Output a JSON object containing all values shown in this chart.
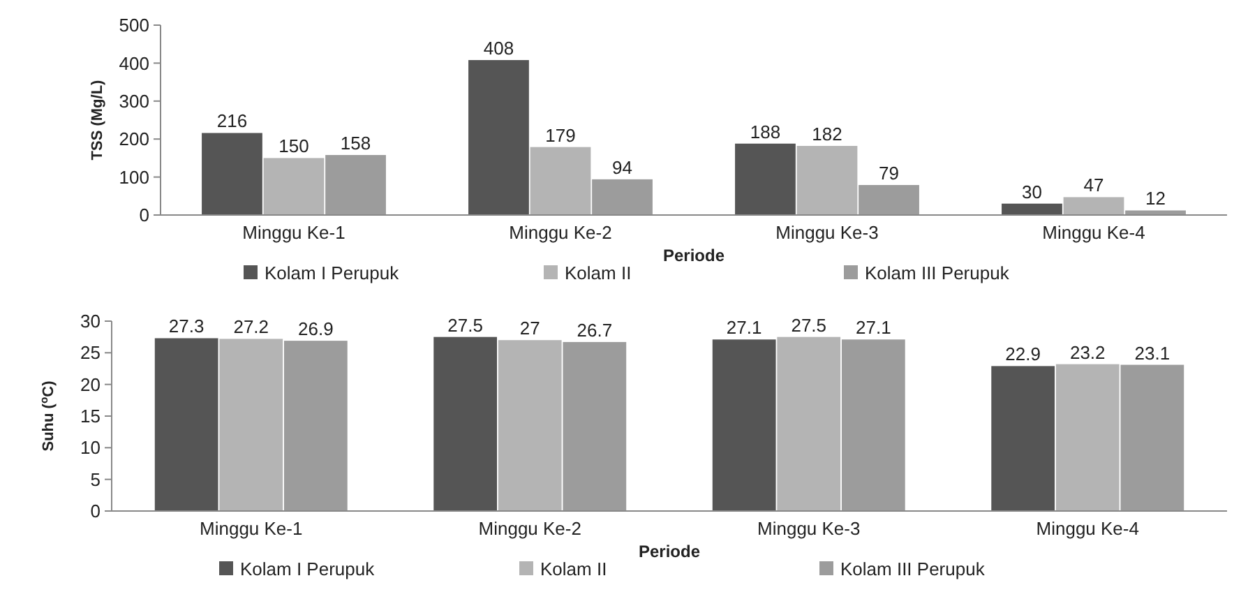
{
  "chart_data": [
    {
      "type": "bar",
      "ylabel": "TSS (Mg/L)",
      "xlabel": "Periode",
      "categories": [
        "Minggu Ke-1",
        "Minggu Ke-2",
        "Minggu Ke-3",
        "Minggu Ke-4"
      ],
      "series": [
        {
          "name": "Kolam I Perupuk",
          "color": "#555555",
          "values": [
            216,
            408,
            188,
            30
          ]
        },
        {
          "name": "Kolam II",
          "color": "#b4b4b4",
          "values": [
            150,
            179,
            182,
            47
          ]
        },
        {
          "name": "Kolam III Perupuk",
          "color": "#9c9c9c",
          "values": [
            158,
            94,
            79,
            12
          ]
        }
      ],
      "ylim": [
        0,
        500
      ],
      "yticks": [
        0,
        100,
        200,
        300,
        400,
        500
      ],
      "data_labels": true,
      "legend": "bottom"
    },
    {
      "type": "bar",
      "ylabel": "Suhu ($^{o}$C)",
      "xlabel": "Periode",
      "categories": [
        "Minggu Ke-1",
        "Minggu Ke-2",
        "Minggu Ke-3",
        "Minggu Ke-4"
      ],
      "series": [
        {
          "name": "Kolam I Perupuk",
          "color": "#555555",
          "values": [
            27.3,
            27.5,
            27.1,
            22.9
          ]
        },
        {
          "name": "Kolam II",
          "color": "#b4b4b4",
          "values": [
            27.2,
            27,
            27.5,
            23.2
          ]
        },
        {
          "name": "Kolam III Perupuk",
          "color": "#9c9c9c",
          "values": [
            26.9,
            26.7,
            27.1,
            23.1
          ]
        }
      ],
      "ylim": [
        0,
        30
      ],
      "yticks": [
        0,
        5,
        10,
        15,
        20,
        25,
        30
      ],
      "data_labels": true,
      "legend": "bottom"
    }
  ]
}
